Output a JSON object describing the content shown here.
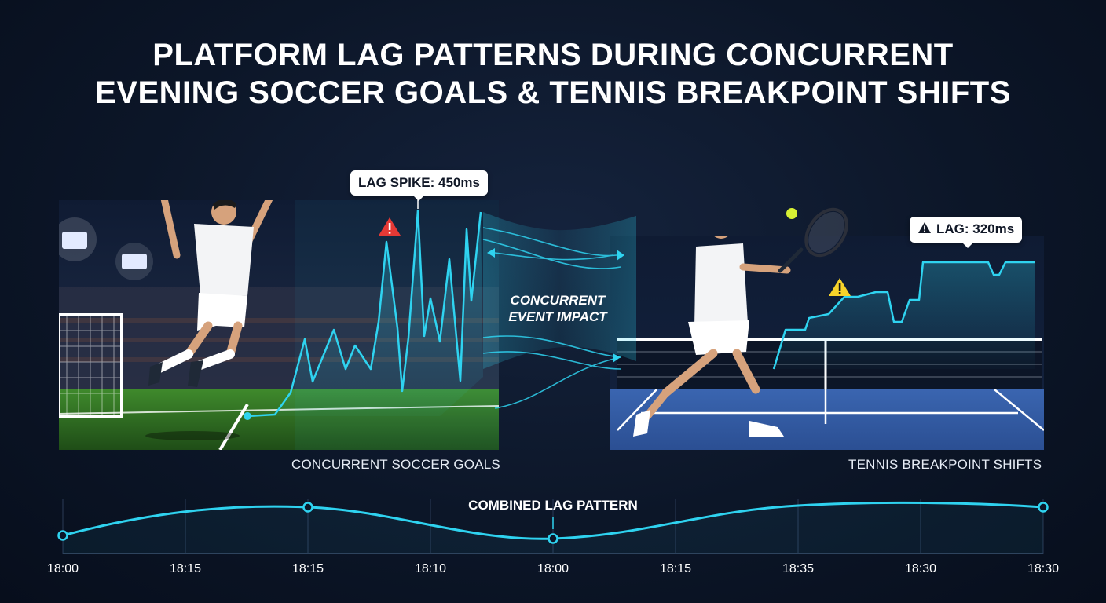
{
  "title": {
    "line1": "PLATFORM LAG PATTERNS DURING CONCURRENT",
    "line2": "EVENING SOCCER GOALS & TENNIS BREAKPOINT SHIFTS"
  },
  "soccer": {
    "caption": "CONCURRENT SOCCER GOALS",
    "callout": "LAG SPIKE: 450ms",
    "alert_icon": "red-warning-icon"
  },
  "tennis": {
    "caption": "TENNIS BREAKPOINT SHIFTS",
    "callout_icon": "warning-icon",
    "callout": "LAG: 320ms",
    "alert_icon": "yellow-warning-icon"
  },
  "center": {
    "line1": "CONCURRENT",
    "line2": "EVENT IMPACT"
  },
  "timeline": {
    "label": "COMBINED LAG PATTERN",
    "ticks": [
      "18:00",
      "18:15",
      "18:15",
      "18:10",
      "18:00",
      "18:15",
      "18:35",
      "18:30",
      "18:30"
    ]
  },
  "colors": {
    "accent": "#2fd3f0",
    "background": "#0c1628",
    "alert_red": "#e53935",
    "alert_yellow": "#f7d32a"
  }
}
